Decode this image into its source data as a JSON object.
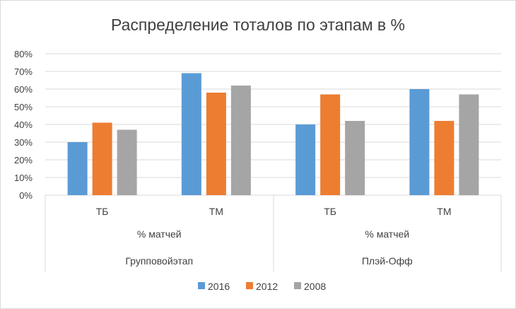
{
  "chart_data": {
    "type": "bar",
    "title": "Распределение тоталов по этапам в %",
    "y_tick_labels": [
      "0%",
      "10%",
      "20%",
      "30%",
      "40%",
      "50%",
      "60%",
      "70%",
      "80%"
    ],
    "ylim": [
      0,
      80
    ],
    "grid": true,
    "legend_position": "bottom",
    "categories": [
      "ТБ",
      "ТМ",
      "ТБ",
      "ТМ"
    ],
    "metric_labels": [
      "% матчей",
      "% матчей"
    ],
    "stage_labels": [
      "Групповойэтап",
      "Плэй-Офф"
    ],
    "series": [
      {
        "name": "2016",
        "color": "#5b9bd5",
        "values": [
          30,
          69,
          40,
          60
        ]
      },
      {
        "name": "2012",
        "color": "#ed7d31",
        "values": [
          41,
          58,
          57,
          42
        ]
      },
      {
        "name": "2008",
        "color": "#a5a5a5",
        "values": [
          37,
          62,
          42,
          57
        ]
      }
    ]
  }
}
